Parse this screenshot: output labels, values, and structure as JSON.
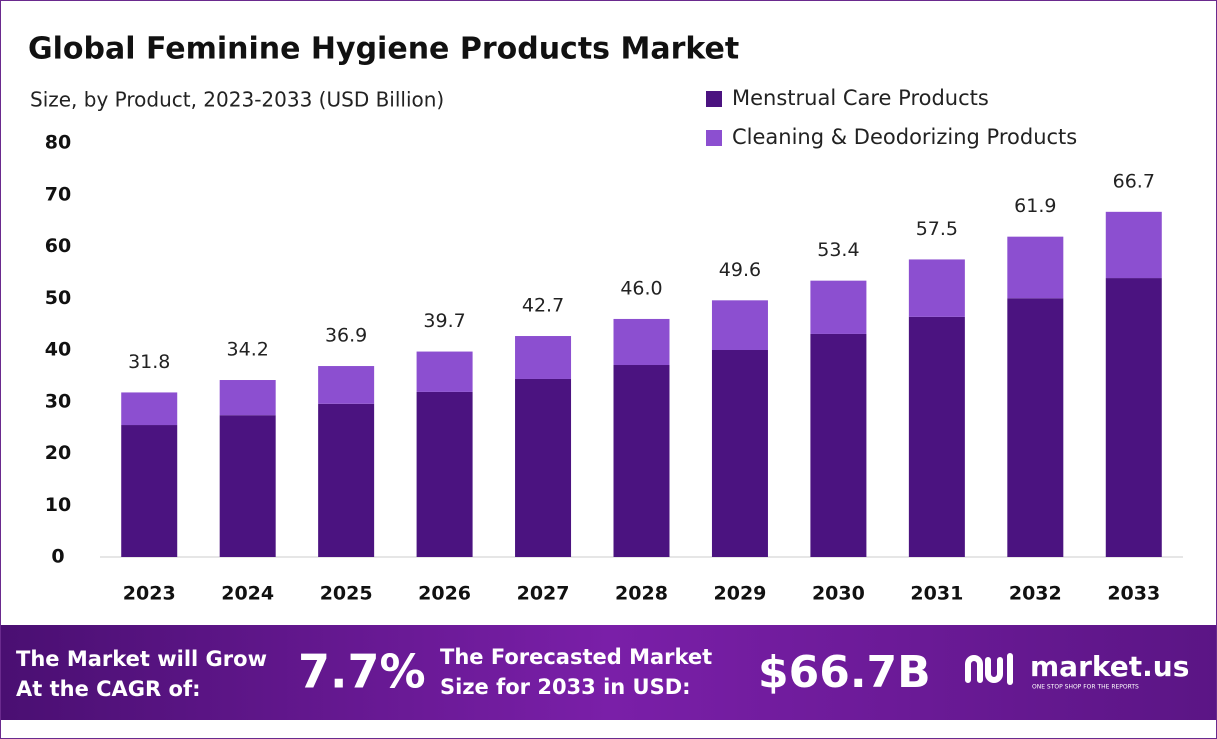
{
  "chart_data": {
    "type": "stacked-bar",
    "title": "Global Feminine Hygiene Products Market",
    "subtitle": "Size, by Product, 2023-2033 (USD Billion)",
    "categories": [
      "2023",
      "2024",
      "2025",
      "2026",
      "2027",
      "2028",
      "2029",
      "2030",
      "2031",
      "2032",
      "2033"
    ],
    "series": [
      {
        "name": "Menstrual Care Products",
        "color": "#4b1380",
        "values": [
          25.5,
          27.4,
          29.6,
          31.9,
          34.4,
          37.1,
          40.0,
          43.1,
          46.4,
          50.0,
          53.9
        ]
      },
      {
        "name": "Cleaning & Deodorizing Products",
        "color": "#8c4fd0",
        "values": [
          6.3,
          6.8,
          7.3,
          7.8,
          8.3,
          8.9,
          9.6,
          10.3,
          11.1,
          11.9,
          12.8
        ]
      }
    ],
    "totals": [
      31.8,
      34.2,
      36.9,
      39.7,
      42.7,
      46.0,
      49.6,
      53.4,
      57.5,
      61.9,
      66.7
    ],
    "total_labels": [
      "31.8",
      "34.2",
      "36.9",
      "39.7",
      "42.7",
      "46.0",
      "49.6",
      "53.4",
      "57.5",
      "61.9",
      "66.7"
    ],
    "ylim": [
      0,
      80
    ],
    "yticks": [
      0,
      10,
      20,
      30,
      40,
      50,
      60,
      70,
      80
    ],
    "grid": false,
    "legend": "top-right"
  },
  "footer": {
    "cagr_lines": [
      "The Market will Grow",
      "At the CAGR of:"
    ],
    "cagr_value": "7.7%",
    "forecast_lines": [
      "The Forecasted Market",
      "Size for 2033 in USD:"
    ],
    "forecast_value": "$66.7B",
    "brand": "market.us",
    "tagline": "ONE STOP SHOP FOR THE REPORTS"
  }
}
